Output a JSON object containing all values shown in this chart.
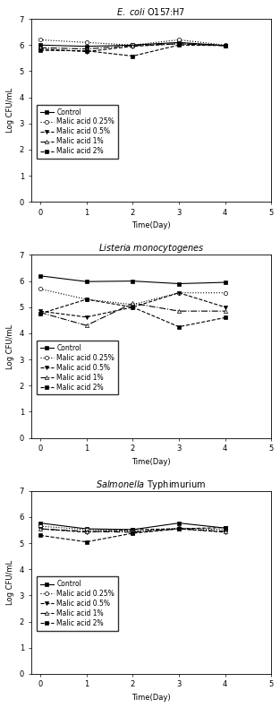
{
  "plots": [
    {
      "title_style": "italic_ecoli",
      "ylim": [
        0,
        7
      ],
      "yticks": [
        0,
        1,
        2,
        3,
        4,
        5,
        6,
        7
      ],
      "series": [
        {
          "label": "Control",
          "x": [
            0,
            1,
            2,
            3,
            4
          ],
          "y": [
            6.0,
            5.95,
            6.0,
            6.1,
            5.98
          ],
          "linestyle": "-",
          "marker": "s",
          "markerfacecolor": "black",
          "color": "black",
          "markersize": 3,
          "linewidth": 0.8
        },
        {
          "label": "Malic acid 0.25%",
          "x": [
            0,
            1,
            2,
            3,
            4
          ],
          "y": [
            6.2,
            6.1,
            6.0,
            6.2,
            6.0
          ],
          "linestyle": ":",
          "marker": "o",
          "markerfacecolor": "white",
          "color": "black",
          "markersize": 3,
          "linewidth": 0.8
        },
        {
          "label": "Malic acid 0.5%",
          "x": [
            0,
            1,
            2,
            3,
            4
          ],
          "y": [
            5.85,
            5.75,
            5.95,
            6.05,
            5.98
          ],
          "linestyle": "--",
          "marker": "v",
          "markerfacecolor": "black",
          "color": "black",
          "markersize": 3,
          "linewidth": 0.8
        },
        {
          "label": "Malic acid 1%",
          "x": [
            0,
            1,
            2,
            3,
            4
          ],
          "y": [
            5.9,
            5.85,
            5.98,
            6.05,
            5.98
          ],
          "linestyle": "-.",
          "marker": "^",
          "markerfacecolor": "white",
          "color": "black",
          "markersize": 3,
          "linewidth": 0.8
        },
        {
          "label": "Malic acid 2%",
          "x": [
            0,
            1,
            2,
            3,
            4
          ],
          "y": [
            5.8,
            5.78,
            5.58,
            6.0,
            5.98
          ],
          "linestyle": "--",
          "marker": "s",
          "markerfacecolor": "black",
          "color": "black",
          "markersize": 3,
          "linewidth": 0.8
        }
      ]
    },
    {
      "title_style": "italic_listeria",
      "ylim": [
        0,
        7
      ],
      "yticks": [
        0,
        1,
        2,
        3,
        4,
        5,
        6,
        7
      ],
      "series": [
        {
          "label": "Control",
          "x": [
            0,
            1,
            2,
            3,
            4
          ],
          "y": [
            6.2,
            5.98,
            6.0,
            5.9,
            5.95
          ],
          "linestyle": "-",
          "marker": "s",
          "markerfacecolor": "black",
          "color": "black",
          "markersize": 3,
          "linewidth": 0.8
        },
        {
          "label": "Malic acid 0.25%",
          "x": [
            0,
            1,
            2,
            3,
            4
          ],
          "y": [
            5.7,
            5.3,
            5.1,
            5.55,
            5.55
          ],
          "linestyle": ":",
          "marker": "o",
          "markerfacecolor": "white",
          "color": "black",
          "markersize": 3,
          "linewidth": 0.8
        },
        {
          "label": "Malic acid 0.5%",
          "x": [
            0,
            1,
            2,
            3,
            4
          ],
          "y": [
            4.85,
            4.62,
            5.0,
            5.55,
            5.0
          ],
          "linestyle": "--",
          "marker": "v",
          "markerfacecolor": "black",
          "color": "black",
          "markersize": 3,
          "linewidth": 0.8
        },
        {
          "label": "Malic acid 1%",
          "x": [
            0,
            1,
            2,
            3,
            4
          ],
          "y": [
            4.8,
            4.3,
            5.15,
            4.85,
            4.85
          ],
          "linestyle": "-.",
          "marker": "^",
          "markerfacecolor": "white",
          "color": "black",
          "markersize": 3,
          "linewidth": 0.8
        },
        {
          "label": "Malic acid 2%",
          "x": [
            0,
            1,
            2,
            3,
            4
          ],
          "y": [
            4.75,
            5.3,
            5.0,
            4.25,
            4.6
          ],
          "linestyle": "--",
          "marker": "s",
          "markerfacecolor": "black",
          "color": "black",
          "markersize": 3,
          "linewidth": 0.8
        }
      ]
    },
    {
      "title_style": "italic_salmonella",
      "ylim": [
        0,
        7
      ],
      "yticks": [
        0,
        1,
        2,
        3,
        4,
        5,
        6,
        7
      ],
      "series": [
        {
          "label": "Control",
          "x": [
            0,
            1,
            2,
            3,
            4
          ],
          "y": [
            5.77,
            5.55,
            5.52,
            5.77,
            5.58
          ],
          "linestyle": "-",
          "marker": "s",
          "markerfacecolor": "black",
          "color": "black",
          "markersize": 3,
          "linewidth": 0.8
        },
        {
          "label": "Malic acid 0.25%",
          "x": [
            0,
            1,
            2,
            3,
            4
          ],
          "y": [
            5.65,
            5.52,
            5.45,
            5.58,
            5.52
          ],
          "linestyle": ":",
          "marker": "o",
          "markerfacecolor": "white",
          "color": "black",
          "markersize": 3,
          "linewidth": 0.8
        },
        {
          "label": "Malic acid 0.5%",
          "x": [
            0,
            1,
            2,
            3,
            4
          ],
          "y": [
            5.55,
            5.42,
            5.52,
            5.55,
            5.42
          ],
          "linestyle": "--",
          "marker": "v",
          "markerfacecolor": "black",
          "color": "black",
          "markersize": 3,
          "linewidth": 0.8
        },
        {
          "label": "Malic acid 1%",
          "x": [
            0,
            1,
            2,
            3,
            4
          ],
          "y": [
            5.55,
            5.45,
            5.42,
            5.55,
            5.45
          ],
          "linestyle": "-.",
          "marker": "^",
          "markerfacecolor": "white",
          "color": "black",
          "markersize": 3,
          "linewidth": 0.8
        },
        {
          "label": "Malic acid 2%",
          "x": [
            0,
            1,
            2,
            3,
            4
          ],
          "y": [
            5.3,
            5.05,
            5.38,
            5.55,
            5.6
          ],
          "linestyle": "--",
          "marker": "s",
          "markerfacecolor": "black",
          "color": "black",
          "markersize": 3,
          "linewidth": 0.8
        }
      ]
    }
  ],
  "xlabel": "Time(Day)",
  "ylabel": "Log CFU/mL",
  "xlim": [
    -0.2,
    5
  ],
  "xticks": [
    0,
    1,
    2,
    3,
    4,
    5
  ],
  "legend_labels": [
    "Control",
    "Malic acid 0.25%",
    "Malic acid 0.5%",
    "Malic acid 1%",
    "Malic acid 2%"
  ],
  "background_color": "#ffffff",
  "fontsize_title": 7,
  "fontsize_axis": 6,
  "fontsize_tick": 6,
  "fontsize_legend": 5.5
}
